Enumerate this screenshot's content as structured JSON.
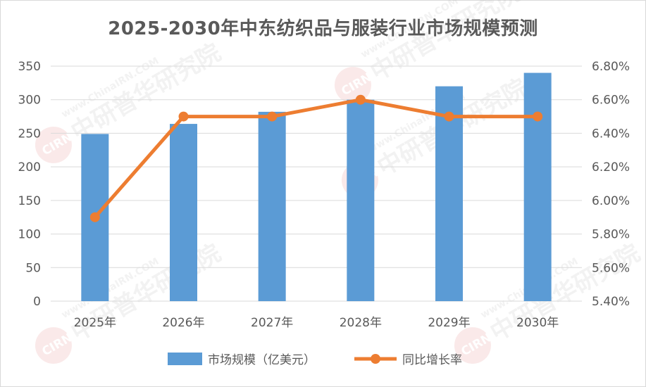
{
  "chart_data": {
    "type": "bar+line",
    "title": "2025-2030年中东纺织品与服装行业市场规模预测",
    "categories": [
      "2025年",
      "2026年",
      "2027年",
      "2028年",
      "2029年",
      "2030年"
    ],
    "series": [
      {
        "name": "市场规模（亿美元）",
        "type": "bar",
        "axis": "left",
        "color": "#5b9bd5",
        "values": [
          249,
          264,
          282,
          300,
          320,
          340
        ]
      },
      {
        "name": "同比增长率",
        "type": "line",
        "axis": "right",
        "color": "#ed7d31",
        "values": [
          5.9,
          6.5,
          6.5,
          6.6,
          6.5,
          6.5
        ]
      }
    ],
    "y_left": {
      "range": [
        0,
        350
      ],
      "ticks": [
        "0",
        "50",
        "100",
        "150",
        "200",
        "250",
        "300",
        "350"
      ]
    },
    "y_right": {
      "range": [
        5.4,
        6.8
      ],
      "ticks": [
        "5.40%",
        "5.60%",
        "5.80%",
        "6.00%",
        "6.20%",
        "6.40%",
        "6.60%",
        "6.80%"
      ]
    },
    "grid": true,
    "legend_position": "bottom"
  },
  "watermark": {
    "brand": "中研普华研究院",
    "url": "www.ChinaIRN.COM",
    "logo": "CIRN"
  }
}
